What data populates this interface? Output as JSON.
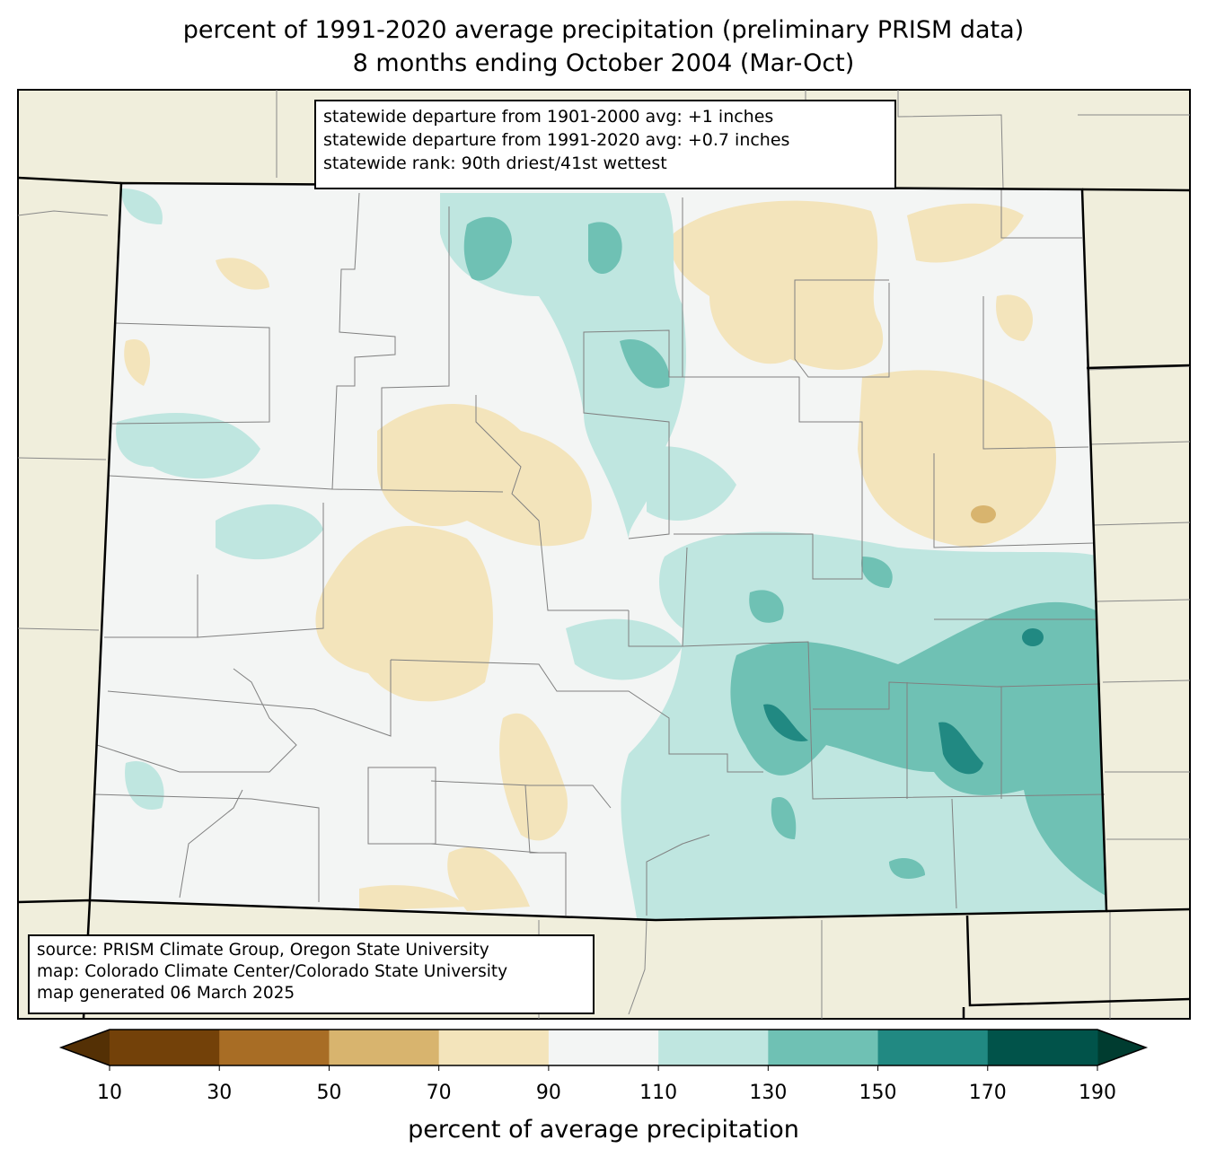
{
  "title": {
    "line1": "percent of 1991-2020 average precipitation (preliminary PRISM data)",
    "line2": "8 months ending October 2004 (Mar-Oct)"
  },
  "info_box": [
    "statewide departure from 1901-2000 avg: +1 inches",
    "statewide departure from 1991-2020 avg: +0.7 inches",
    "statewide rank: 90th driest/41st wettest"
  ],
  "source_box": [
    "source: PRISM Climate Group, Oregon State University",
    "map: Colorado Climate Center/Colorado State University",
    "map generated 06 March 2025"
  ],
  "colorbar": {
    "label": "percent of average precipitation",
    "ticks": [
      "10",
      "30",
      "50",
      "70",
      "90",
      "110",
      "130",
      "150",
      "170",
      "190"
    ],
    "extend_low_color": "#543005",
    "extend_high_color": "#003c30",
    "colors": [
      "#734109",
      "#a86d25",
      "#d8b46e",
      "#f3e4bb",
      "#f3f5f4",
      "#bfe6e0",
      "#6fc1b4",
      "#218982",
      "#01534a"
    ]
  },
  "map_colors": {
    "background": "#f0eedc",
    "near_normal": "#f3f5f4",
    "dry": "#f3e4bb",
    "drier": "#d8b46e",
    "wet": "#bfe6e0",
    "wetter": "#6fc1b4",
    "wettest": "#218982"
  }
}
